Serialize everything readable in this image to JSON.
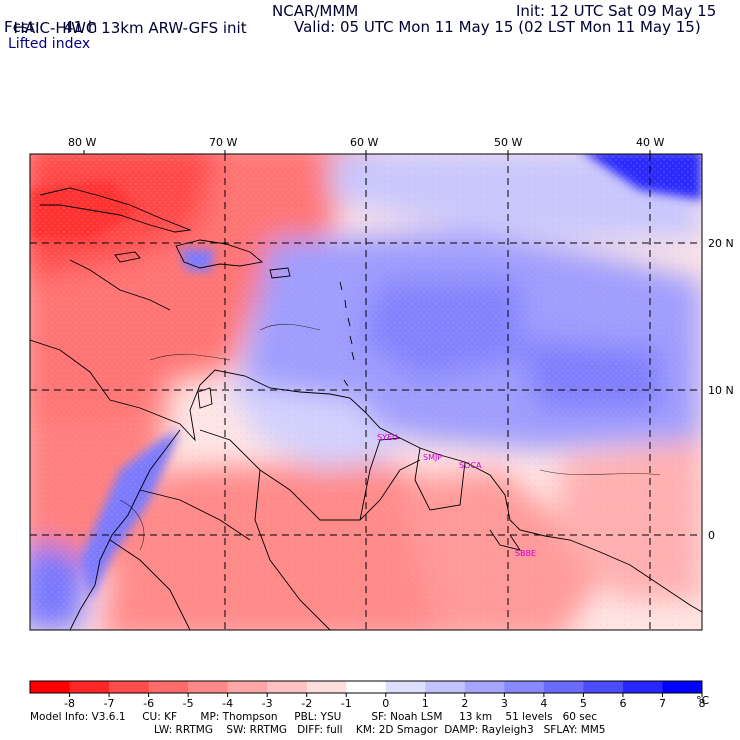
{
  "header": {
    "model_title": "HAIC-HIWC 13km ARW-GFS init",
    "org": "NCAR/MMM",
    "init": "Init: 12 UTC Sat 09 May 15",
    "fcst_label": "Fcst:",
    "fcst_value": "41 h",
    "valid": "Valid: 05 UTC Mon 11 May 15 (02 LST Mon 11 May 15)",
    "field_name": "Lifted index"
  },
  "map": {
    "lon_labels": [
      "80 W",
      "70 W",
      "60 W",
      "50 W",
      "40 W"
    ],
    "lat_labels": [
      "20 N",
      "10 N",
      "0"
    ],
    "stations": [
      "SYEU",
      "SMJP",
      "SOCA",
      "SBBE"
    ]
  },
  "colorbar": {
    "unit": "°C",
    "ticks": [
      "-8",
      "-7",
      "-6",
      "-5",
      "-4",
      "-3",
      "-2",
      "-1",
      "0",
      "1",
      "2",
      "3",
      "4",
      "5",
      "6",
      "7",
      "8"
    ],
    "colors": [
      "#ff0000",
      "#ff2626",
      "#ff4c4c",
      "#ff6a6a",
      "#ff8888",
      "#ffa6a6",
      "#ffc2c2",
      "#ffdede",
      "#ffffff",
      "#dedeff",
      "#c2c2ff",
      "#a6a6ff",
      "#8888ff",
      "#6a6aff",
      "#4c4cff",
      "#2626ff",
      "#0000ff"
    ]
  },
  "model_info": {
    "line1": "Model Info: V3.6.1     CU: KF       MP: Thompson     PBL: YSU         SF: Noah LSM     13 km    51 levels   60 sec",
    "line2": "LW: RRTMG    SW: RRTMG   DIFF: full    KM: 2D Smagor  DAMP: Rayleigh3   SFLAY: MM5"
  }
}
